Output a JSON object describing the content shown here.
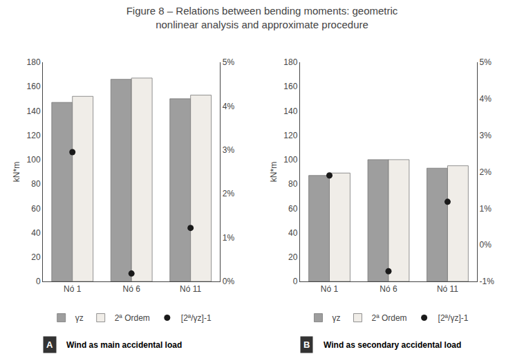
{
  "title": "Figure 8 – Relations between bending moments: geometric\nnonlinear analysis and approximate procedure",
  "chart_data": [
    {
      "type": "bar",
      "title": "A",
      "subtitle": "Wind as main accidental load",
      "categories": [
        "Nó 1",
        "Nó 6",
        "Nó 11"
      ],
      "ylabel": "kN*m",
      "ylim": [
        0,
        180
      ],
      "yticks": [
        0,
        20,
        40,
        60,
        80,
        100,
        120,
        140,
        160,
        180
      ],
      "y2lim": [
        0,
        5
      ],
      "y2ticks": [
        {
          "value": 0,
          "label": "0%"
        },
        {
          "value": 1,
          "label": "1%"
        },
        {
          "value": 2,
          "label": "2%"
        },
        {
          "value": 3,
          "label": "3%"
        },
        {
          "value": 4,
          "label": "4%"
        },
        {
          "value": 5,
          "label": "5%"
        }
      ],
      "grid": false,
      "legend": "bottom",
      "series": [
        {
          "name": "γz",
          "type": "bar",
          "color": "#9E9E9E",
          "values": [
            147,
            166,
            150
          ]
        },
        {
          "name": "2ª Ordem",
          "type": "bar",
          "color": "#F0EDE8",
          "values": [
            152,
            167,
            153
          ]
        },
        {
          "name": "[2ª/γz]-1",
          "type": "scatter",
          "marker": "circle",
          "color": "#1a1a1a",
          "axis": "y2",
          "values": [
            2.95,
            0.18,
            1.22
          ]
        }
      ]
    },
    {
      "type": "bar",
      "title": "B",
      "subtitle": "Wind as secondary accidental load",
      "categories": [
        "Nó 1",
        "Nó 6",
        "Nó 11"
      ],
      "ylabel": "kN*m",
      "ylim": [
        0,
        180
      ],
      "yticks": [
        0,
        20,
        40,
        60,
        80,
        100,
        120,
        140,
        160,
        180
      ],
      "y2lim": [
        -1,
        5
      ],
      "y2ticks": [
        {
          "value": -1,
          "label": "-1%"
        },
        {
          "value": 0,
          "label": "0%"
        },
        {
          "value": 1,
          "label": "1%"
        },
        {
          "value": 2,
          "label": "2%"
        },
        {
          "value": 3,
          "label": "3%"
        },
        {
          "value": 4,
          "label": "4%"
        },
        {
          "value": 5,
          "label": "5%"
        }
      ],
      "grid": false,
      "legend": "bottom",
      "series": [
        {
          "name": "γz",
          "type": "bar",
          "color": "#9E9E9E",
          "values": [
            87,
            100,
            93
          ]
        },
        {
          "name": "2ª Ordem",
          "type": "bar",
          "color": "#F0EDE8",
          "values": [
            89,
            100,
            95
          ]
        },
        {
          "name": "[2ª/γz]-1",
          "type": "scatter",
          "marker": "circle",
          "color": "#1a1a1a",
          "axis": "y2",
          "values": [
            1.9,
            -0.72,
            1.18
          ]
        }
      ]
    }
  ]
}
